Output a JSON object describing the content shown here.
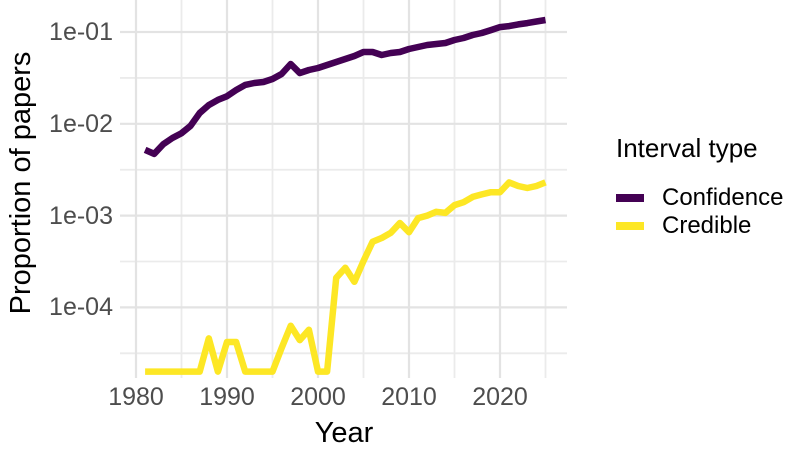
{
  "figure": {
    "background_color": "#ffffff",
    "grid_major_color": "#e3e3e3",
    "grid_minor_color": "#ebebeb",
    "tick_label_color": "#4d4d4d",
    "title_color": "#000000"
  },
  "chart_data": {
    "type": "line",
    "xlabel": "Year",
    "ylabel": "Proportion of papers",
    "legend_title": "Interval type",
    "legend_position": "right",
    "x_scale": "linear",
    "y_scale": "log10",
    "grid": true,
    "xlim": [
      1978.2,
      2027.4
    ],
    "ylim": [
      1.7e-05,
      0.22
    ],
    "x_ticks": [
      1980,
      1990,
      2000,
      2010,
      2020
    ],
    "x_tick_labels": [
      "1980",
      "1990",
      "2000",
      "2010",
      "2020"
    ],
    "x_minor_ticks": [
      1985,
      1995,
      2005,
      2015,
      2025
    ],
    "y_ticks": [
      0.1,
      0.01,
      0.001,
      0.0001
    ],
    "y_tick_labels": [
      "1e-01",
      "1e-02",
      "1e-03",
      "1e-04"
    ],
    "y_minor_ticks": [
      0.0316,
      0.00316,
      0.000316,
      3.16e-05
    ],
    "x": [
      1981,
      1982,
      1983,
      1984,
      1985,
      1986,
      1987,
      1988,
      1989,
      1990,
      1991,
      1992,
      1993,
      1994,
      1995,
      1996,
      1997,
      1998,
      1999,
      2000,
      2001,
      2002,
      2003,
      2004,
      2005,
      2006,
      2007,
      2008,
      2009,
      2010,
      2011,
      2012,
      2013,
      2014,
      2015,
      2016,
      2017,
      2018,
      2019,
      2020,
      2021,
      2022,
      2023,
      2024,
      2025
    ],
    "series": [
      {
        "name": "Confidence",
        "color": "#440154",
        "values": [
          0.0052,
          0.0047,
          0.006,
          0.007,
          0.0079,
          0.0095,
          0.0131,
          0.016,
          0.0182,
          0.02,
          0.0233,
          0.0265,
          0.0278,
          0.0285,
          0.0308,
          0.0349,
          0.0448,
          0.0357,
          0.0386,
          0.0405,
          0.0437,
          0.0471,
          0.0508,
          0.0548,
          0.0605,
          0.0605,
          0.0561,
          0.059,
          0.0605,
          0.0653,
          0.0687,
          0.0722,
          0.074,
          0.0759,
          0.0818,
          0.0861,
          0.0927,
          0.0975,
          0.105,
          0.113,
          0.116,
          0.121,
          0.125,
          0.13,
          0.135
        ]
      },
      {
        "name": "Credible",
        "color": "#FDE725",
        "values": [
          2e-05,
          2e-05,
          2e-05,
          2e-05,
          2e-05,
          2e-05,
          2e-05,
          4.6e-05,
          2e-05,
          4.2e-05,
          4.2e-05,
          2e-05,
          2e-05,
          2e-05,
          2e-05,
          3.6e-05,
          6.3e-05,
          4.4e-05,
          5.7e-05,
          2e-05,
          2e-05,
          0.00021,
          0.00027,
          0.00019,
          0.00032,
          0.00052,
          0.00057,
          0.00065,
          0.00083,
          0.00066,
          0.00094,
          0.001,
          0.0011,
          0.00107,
          0.0013,
          0.0014,
          0.0016,
          0.0017,
          0.0018,
          0.0018,
          0.0023,
          0.0021,
          0.002,
          0.0021,
          0.0023
        ]
      }
    ]
  }
}
